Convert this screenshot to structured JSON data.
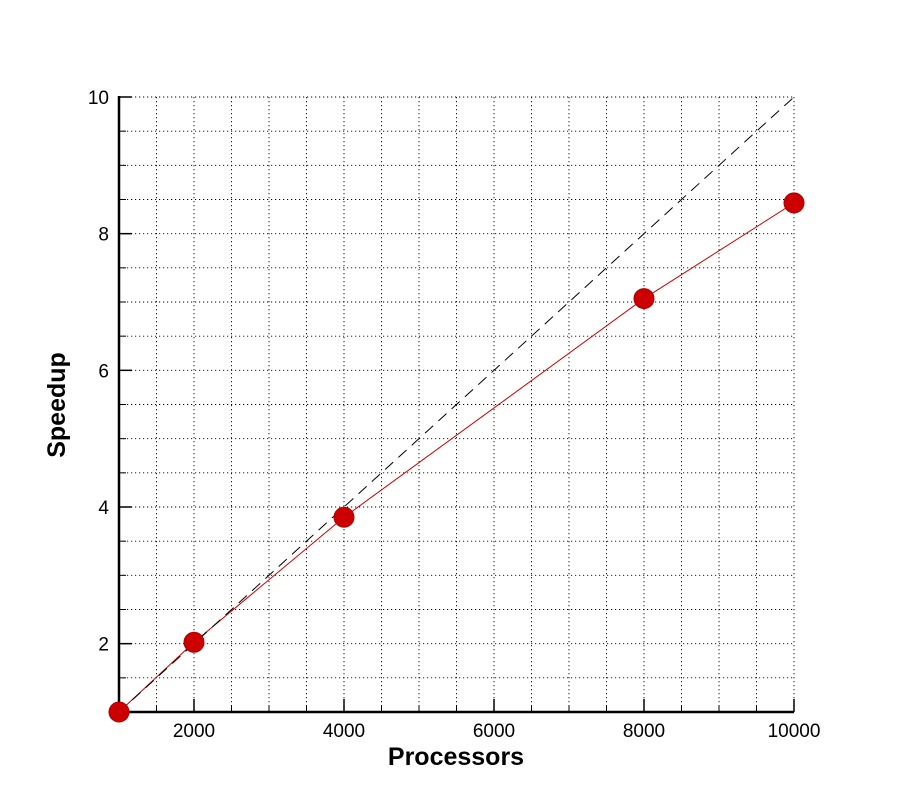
{
  "chart_data": {
    "type": "line",
    "xlabel": "Processors",
    "ylabel": "Speedup",
    "xlim": [
      1000,
      10000
    ],
    "ylim": [
      1,
      10
    ],
    "xticks": [
      2000,
      4000,
      6000,
      8000,
      10000
    ],
    "yticks": [
      2,
      4,
      6,
      8,
      10
    ],
    "x_minor_step": 500,
    "y_minor_step": 0.5,
    "grid": true,
    "series": [
      {
        "x": [
          1000,
          2000,
          4000,
          8000,
          10000
        ],
        "y": [
          1.0,
          2.02,
          3.85,
          7.05,
          8.45
        ],
        "color": "#cc0000",
        "style": "solid",
        "markers": true
      },
      {
        "x": [
          1000,
          10000
        ],
        "y": [
          1,
          10
        ],
        "color": "#000000",
        "style": "dashed",
        "markers": false
      }
    ]
  }
}
